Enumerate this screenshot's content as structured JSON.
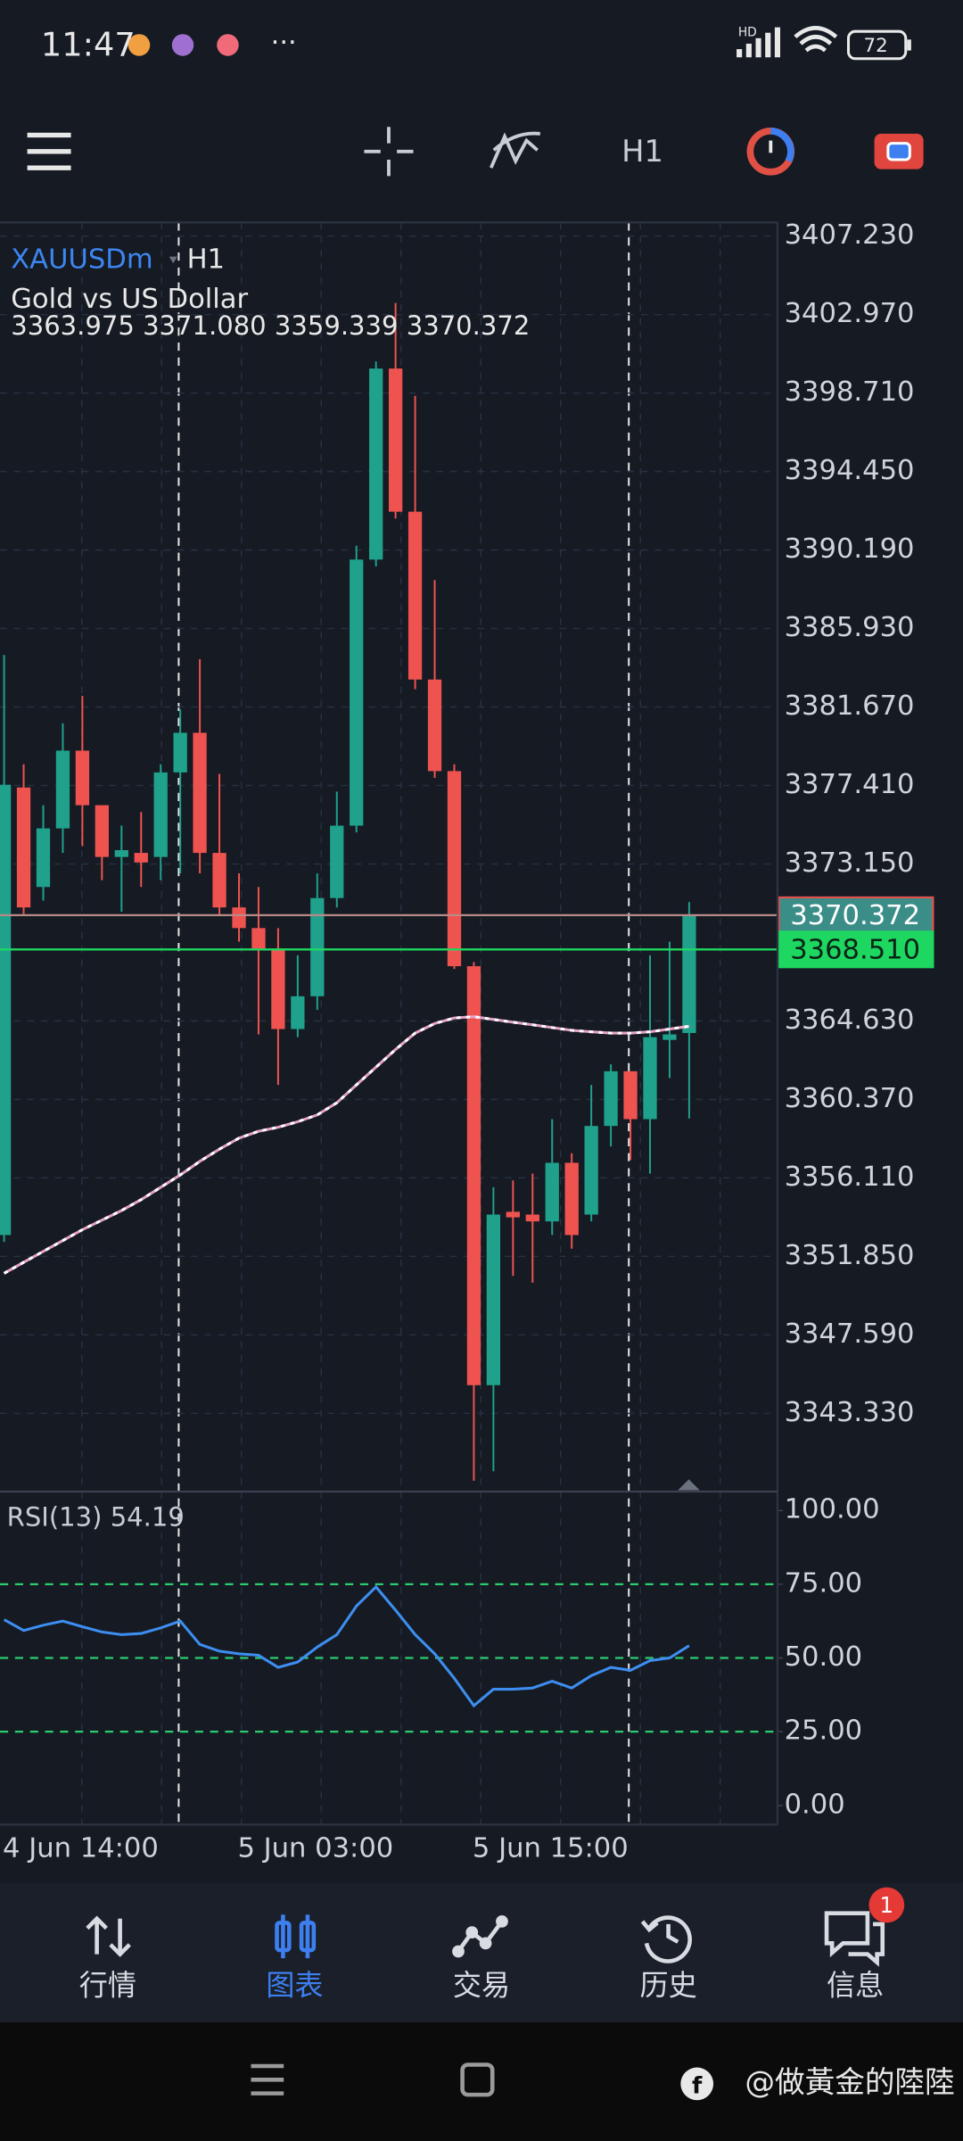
{
  "status_bar": {
    "time": "11:47",
    "network": "HD",
    "battery": "72"
  },
  "toolbar": {
    "timeframe": "H1"
  },
  "chart_data": [
    {
      "type": "candlestick",
      "symbol": "XAUUSDm",
      "timeframe": "H1",
      "description": "Gold vs US Dollar",
      "ohlc_text": "3363.975 3371.080 3359.339 3370.372",
      "categories": [
        "4 Jun 14:00",
        null,
        null,
        null,
        null,
        null,
        null,
        null,
        null,
        null,
        null,
        null,
        "5 Jun 03:00",
        null,
        null,
        null,
        null,
        null,
        null,
        null,
        null,
        null,
        null,
        null,
        "5 Jun 15:00",
        null,
        null,
        null,
        null,
        null,
        null,
        null,
        null,
        null,
        null,
        null
      ],
      "open": [
        3353.01,
        3377.3,
        3371.9,
        3375.08,
        3379.3,
        3376.34,
        3373.53,
        3373.75,
        3373.53,
        3378.12,
        3380.27,
        3373.75,
        3370.79,
        3369.67,
        3368.56,
        3364.19,
        3365.97,
        3371.3,
        3375.23,
        3389.67,
        3400.04,
        3392.27,
        3383.16,
        3378.19,
        3367.6,
        3344.86,
        3354.27,
        3354.12,
        3353.75,
        3356.93,
        3354.12,
        3358.93,
        3361.9,
        3359.3,
        3363.6,
        3363.975
      ],
      "high": [
        3384.49,
        3378.56,
        3376.34,
        3380.79,
        3382.27,
        3376.34,
        3375.23,
        3375.97,
        3378.56,
        3381.53,
        3384.27,
        3378.04,
        3372.64,
        3371.9,
        3369.67,
        3368.19,
        3372.64,
        3377.08,
        3390.42,
        3400.42,
        3403.6,
        3398.56,
        3388.56,
        3378.56,
        3367.82,
        3355.6,
        3355.97,
        3356.34,
        3359.3,
        3357.45,
        3361.16,
        3362.27,
        3361.9,
        3368.19,
        3368.93,
        3371.08
      ],
      "low": [
        3352.64,
        3370.42,
        3371.16,
        3373.75,
        3374.12,
        3372.27,
        3370.56,
        3371.9,
        3372.27,
        3372.64,
        3372.64,
        3370.42,
        3368.93,
        3363.9,
        3361.16,
        3363.75,
        3365.23,
        3370.79,
        3374.86,
        3389.3,
        3391.9,
        3382.64,
        3377.82,
        3367.45,
        3339.67,
        3340.19,
        3350.79,
        3350.42,
        3353.01,
        3352.27,
        3353.75,
        3357.82,
        3357.08,
        3356.34,
        3361.53,
        3359.339
      ],
      "close": [
        3377.45,
        3370.79,
        3375.08,
        3379.3,
        3376.34,
        3373.53,
        3373.9,
        3373.23,
        3378.12,
        3380.27,
        3373.75,
        3370.79,
        3369.67,
        3368.56,
        3364.19,
        3365.97,
        3371.3,
        3375.23,
        3389.67,
        3400.04,
        3392.27,
        3383.16,
        3378.19,
        3367.6,
        3344.86,
        3354.12,
        3353.97,
        3353.75,
        3356.93,
        3353.01,
        3358.93,
        3361.9,
        3359.3,
        3363.75,
        3363.9,
        3370.372
      ],
      "up_color": "#1fa18c",
      "down_color": "#ef5350",
      "ma": {
        "color": "#e8a3c8",
        "values": [
          3350.93,
          3351.53,
          3352.12,
          3352.71,
          3353.3,
          3353.82,
          3354.34,
          3354.93,
          3355.6,
          3356.27,
          3357.01,
          3357.67,
          3358.27,
          3358.64,
          3358.86,
          3359.16,
          3359.53,
          3360.19,
          3361.16,
          3362.12,
          3363.08,
          3363.97,
          3364.49,
          3364.79,
          3364.86,
          3364.71,
          3364.56,
          3364.42,
          3364.27,
          3364.12,
          3364.04,
          3363.97,
          3363.97,
          3364.04,
          3364.19,
          3364.34
        ]
      },
      "price_lines": [
        {
          "value": 3370.372,
          "label": "3370.372",
          "color": "#3b8d88",
          "line_color": "#b98a88",
          "border": "#e0524e",
          "text_color": "#ffffff"
        },
        {
          "value": 3368.51,
          "label": "3368.510",
          "color": "#1ed760",
          "line_color": "#1ed760",
          "border": "#1ed760",
          "text_color": "#0b2416"
        }
      ],
      "ylim": [
        3339.16,
        3407.97
      ],
      "yticks": [
        {
          "value": 3407.23,
          "label": "3407.230"
        },
        {
          "value": 3402.97,
          "label": "3402.970"
        },
        {
          "value": 3398.71,
          "label": "3398.710"
        },
        {
          "value": 3394.45,
          "label": "3394.450"
        },
        {
          "value": 3390.19,
          "label": "3390.190"
        },
        {
          "value": 3385.93,
          "label": "3385.930"
        },
        {
          "value": 3381.67,
          "label": "3381.670"
        },
        {
          "value": 3377.41,
          "label": "3377.410"
        },
        {
          "value": 3373.15,
          "label": "3373.150"
        },
        {
          "value": 3364.63,
          "label": "3364.630"
        },
        {
          "value": 3360.37,
          "label": "3360.370"
        },
        {
          "value": 3356.11,
          "label": "3356.110"
        },
        {
          "value": 3351.85,
          "label": "3351.850"
        },
        {
          "value": 3347.59,
          "label": "3347.590"
        },
        {
          "value": 3343.33,
          "label": "3343.330"
        }
      ],
      "grid": true
    },
    {
      "type": "line",
      "title": "RSI(13) 54.19",
      "series": [
        {
          "name": "RSI(13)",
          "color": "#3d8ef0",
          "values": [
            63.0,
            59.3,
            61.1,
            62.5,
            60.6,
            58.8,
            57.9,
            58.3,
            60.2,
            62.5,
            54.6,
            52.3,
            51.4,
            50.9,
            46.8,
            48.6,
            53.7,
            57.9,
            67.6,
            74.1,
            66.2,
            57.9,
            51.4,
            43.1,
            33.8,
            39.4,
            39.4,
            39.8,
            42.1,
            39.8,
            44.0,
            46.8,
            45.8,
            49.1,
            50.0,
            54.19
          ]
        }
      ],
      "levels": [
        75,
        50,
        25
      ],
      "level_color": "#2ecc71",
      "ylim": [
        -6.5,
        105.5
      ],
      "yticks": [
        {
          "value": 100,
          "label": "100.00"
        },
        {
          "value": 75,
          "label": "75.00"
        },
        {
          "value": 50,
          "label": "50.00"
        },
        {
          "value": 25,
          "label": "25.00"
        },
        {
          "value": 0,
          "label": "0.00"
        }
      ]
    }
  ],
  "nav": {
    "items": [
      "行情",
      "图表",
      "交易",
      "历史",
      "信息"
    ],
    "badge": "1"
  },
  "watermark": "@做黃金的陸陸"
}
